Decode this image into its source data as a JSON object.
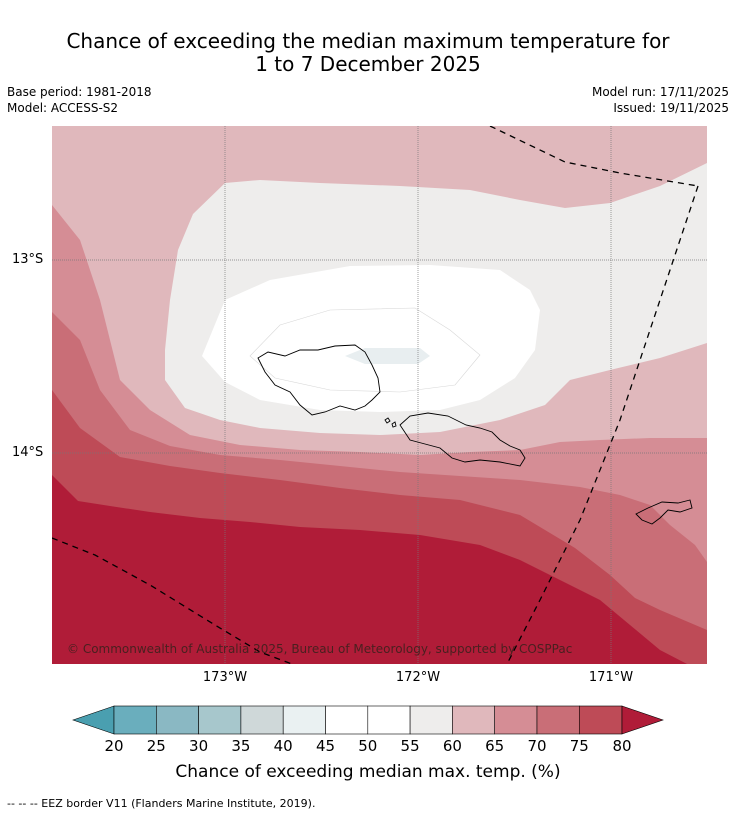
{
  "title_line1": "Chance of exceeding the median maximum temperature for",
  "title_line2": "1 to 7 December 2025",
  "meta_left": [
    "Base period: 1981-2018",
    "Model: ACCESS-S2"
  ],
  "meta_right": [
    "Model run: 17/11/2025",
    "Issued: 19/11/2025"
  ],
  "lat_labels": [
    "13°S",
    "14°S"
  ],
  "lon_labels": [
    "173°W",
    "172°W",
    "171°W"
  ],
  "copyright": "© Commonwealth of Australia 2025, Bureau of Meteorology, supported by COSPPac",
  "colorbar": {
    "ticks": [
      "20",
      "25",
      "30",
      "35",
      "40",
      "45",
      "50",
      "55",
      "60",
      "65",
      "70",
      "75",
      "80"
    ],
    "label": "Chance of exceeding median max. temp. (%)",
    "colors": {
      "under": "#4a9fb0",
      "c20_25": "#6aaebd",
      "c25_30": "#8ab8c3",
      "c30_35": "#a7c7cc",
      "c35_40": "#cfd8d9",
      "c40_45": "#eaf1f2",
      "c45_50": "#ffffff",
      "c50_55": "#ffffff",
      "c55_60": "#eeedec",
      "c60_65": "#e0b8bc",
      "c65_70": "#d58d95",
      "c70_75": "#c96e77",
      "c75_80": "#be4b57",
      "over": "#b01c38"
    }
  },
  "footer": "--  --  -- EEZ border V11 (Flanders Marine Institute, 2019)."
}
